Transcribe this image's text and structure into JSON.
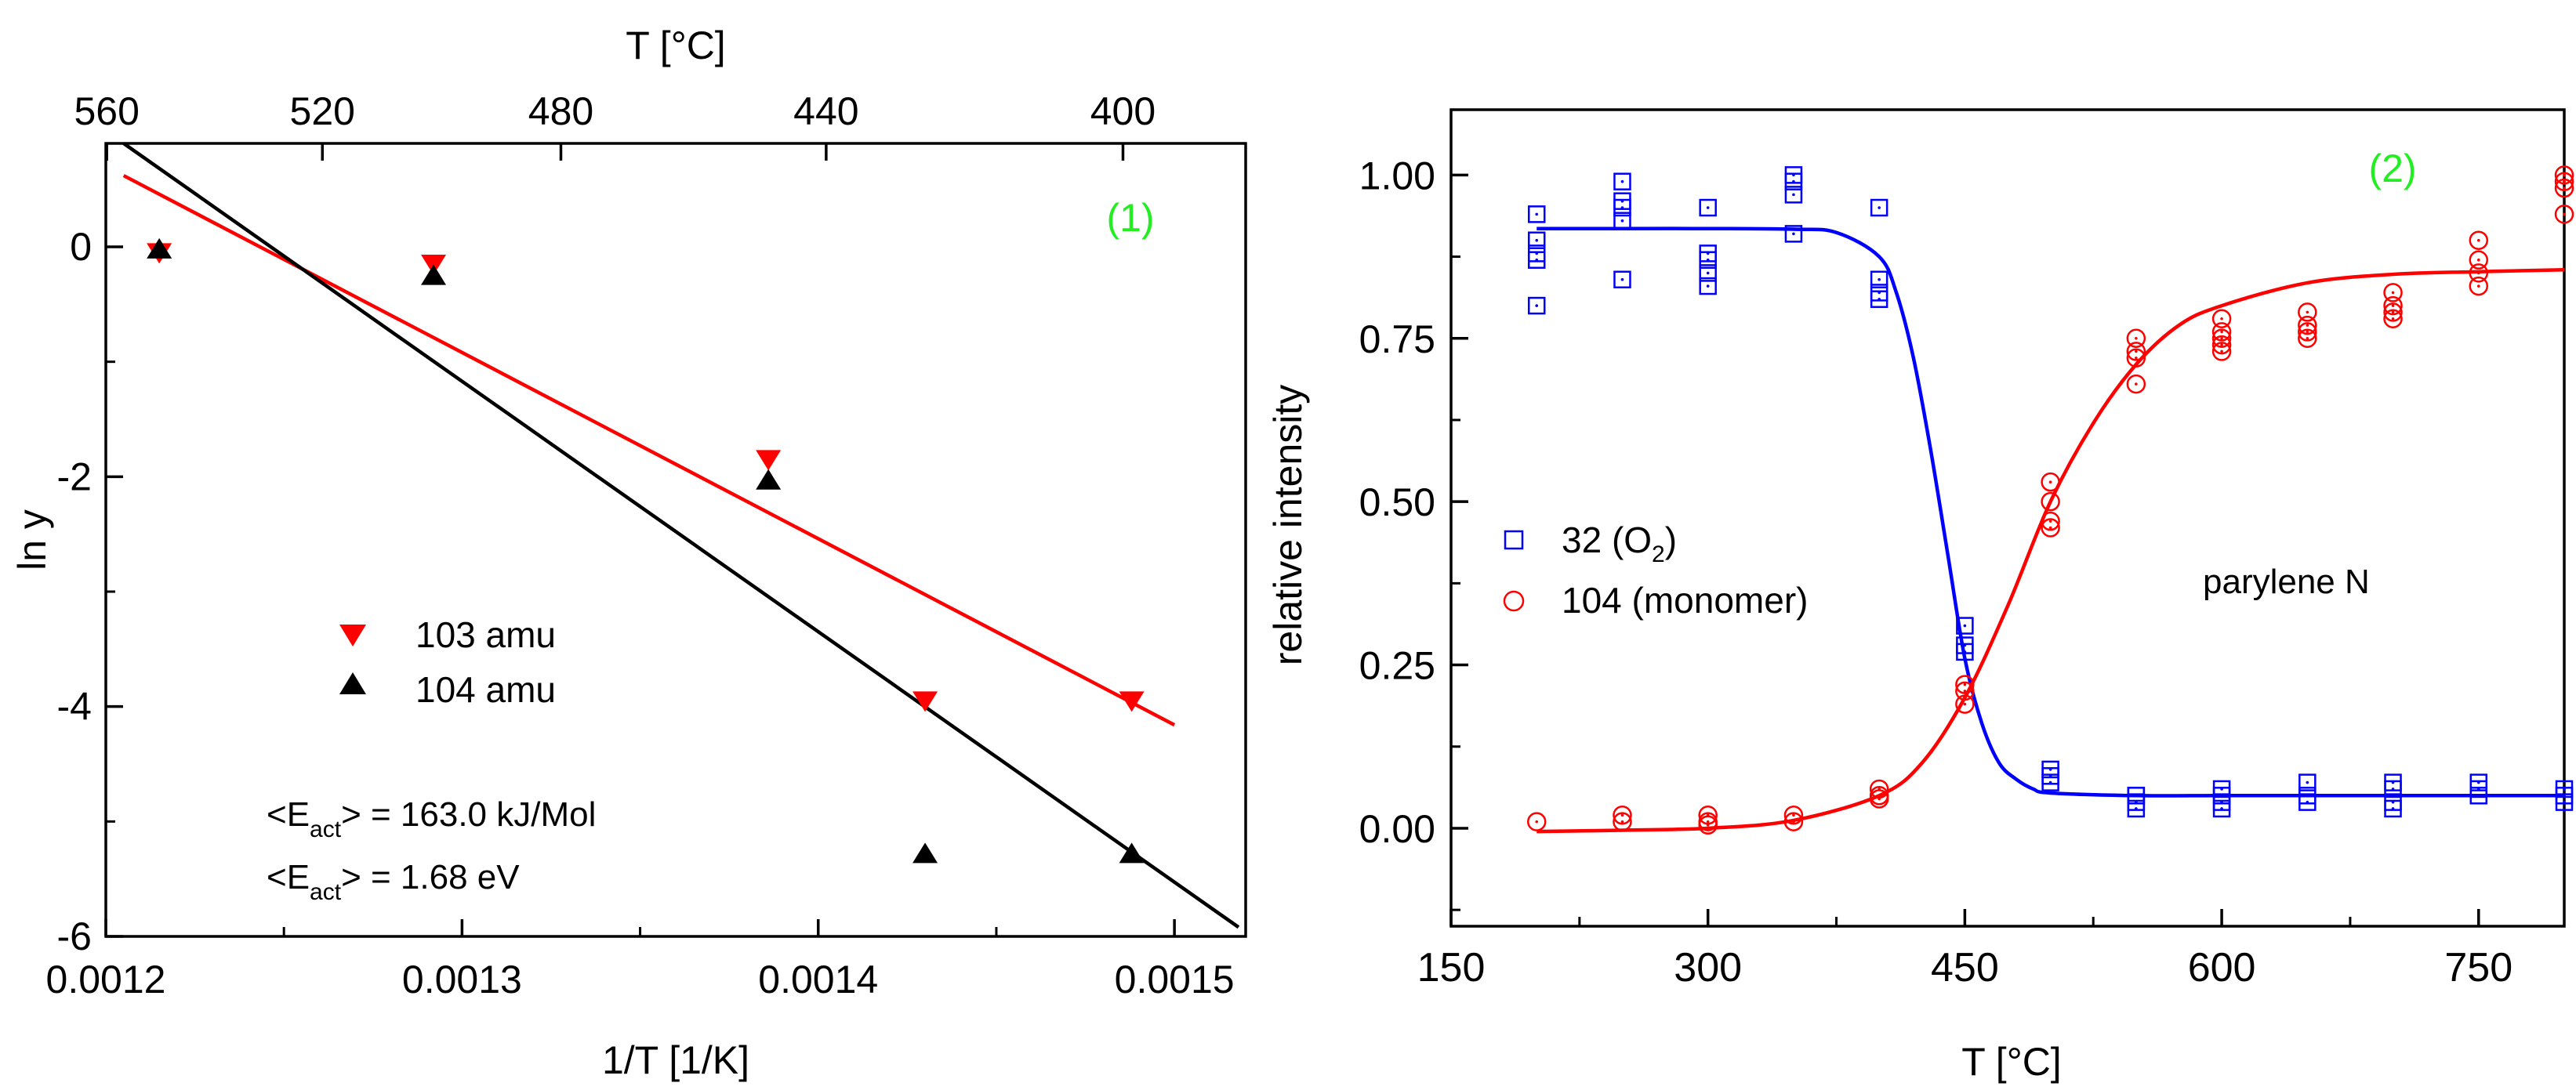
{
  "chart_data": [
    {
      "type": "scatter",
      "panel_label": "(1)",
      "xlabel": "1/T [1/K]",
      "ylabel": "ln y",
      "top_axis_label": "T [°C]",
      "xlim": [
        0.0012,
        0.00152
      ],
      "ylim": [
        -6,
        0.9
      ],
      "xticks": [
        {
          "v": 0.0012,
          "label": "0.0012"
        },
        {
          "v": 0.0013,
          "label": "0.0013"
        },
        {
          "v": 0.0014,
          "label": "0.0014"
        },
        {
          "v": 0.0015,
          "label": "0.0015"
        }
      ],
      "yticks": [
        {
          "v": 0,
          "label": "0"
        },
        {
          "v": -2,
          "label": "-2"
        },
        {
          "v": -4,
          "label": "-4"
        },
        {
          "v": -6,
          "label": "-6"
        }
      ],
      "top_ticks": [
        {
          "t": 560,
          "label": "560"
        },
        {
          "t": 520,
          "label": "520"
        },
        {
          "t": 480,
          "label": "480"
        },
        {
          "t": 440,
          "label": "440"
        },
        {
          "t": 400,
          "label": "400"
        }
      ],
      "series": [
        {
          "name": "103 amu",
          "color": "#ff0000",
          "marker": "triangle-down",
          "x": [
            0.001215,
            0.001292,
            0.001386,
            0.00143,
            0.001488
          ],
          "y": [
            -0.05,
            -0.15,
            -1.85,
            -3.95,
            -3.95
          ]
        },
        {
          "name": "104 amu",
          "color": "#000000",
          "marker": "triangle-up",
          "x": [
            0.001215,
            0.001292,
            0.001386,
            0.00143,
            0.001488
          ],
          "y": [
            -0.02,
            -0.25,
            -2.03,
            -5.28,
            -5.28
          ]
        }
      ],
      "fits": [
        {
          "name": "103 amu fit",
          "color": "#ff0000",
          "x": [
            0.001205,
            0.0015
          ],
          "y": [
            0.62,
            -4.16
          ]
        },
        {
          "name": "104 amu fit",
          "color": "#000000",
          "x": [
            0.001205,
            0.001518
          ],
          "y": [
            0.9,
            -5.92
          ]
        }
      ],
      "legend_placement": "lower-left",
      "annotations": [
        {
          "pre": "<E",
          "sub": "act",
          "post": "> = 163.0 kJ/Mol"
        },
        {
          "pre": "<E",
          "sub": "act",
          "post": "> = 1.68 eV"
        }
      ]
    },
    {
      "type": "scatter",
      "panel_label": "(2)",
      "xlabel": "T [°C]",
      "ylabel": "relative intensity",
      "xlim": [
        150,
        800
      ],
      "ylim": [
        -0.15,
        1.1
      ],
      "xticks": [
        {
          "v": 150,
          "label": "150"
        },
        {
          "v": 300,
          "label": "300"
        },
        {
          "v": 450,
          "label": "450"
        },
        {
          "v": 600,
          "label": "600"
        },
        {
          "v": 750,
          "label": "750"
        }
      ],
      "yticks": [
        {
          "v": 0,
          "label": "0.00"
        },
        {
          "v": 0.25,
          "label": "0.25"
        },
        {
          "v": 0.5,
          "label": "0.50"
        },
        {
          "v": 0.75,
          "label": "0.75"
        },
        {
          "v": 1.0,
          "label": "1.00"
        }
      ],
      "annotation": "parylene N",
      "legend_placement": "middle-left",
      "series": [
        {
          "name": "32 (O2)",
          "legend_pre": "32 (O",
          "legend_sub": "2",
          "legend_post": ")",
          "color": "#0000ff",
          "marker": "square",
          "x": [
            200,
            200,
            200,
            200,
            200,
            250,
            250,
            250,
            250,
            250,
            300,
            300,
            300,
            300,
            300,
            350,
            350,
            350,
            350,
            400,
            400,
            400,
            400,
            450,
            450,
            450,
            500,
            500,
            500,
            550,
            550,
            550,
            550,
            600,
            600,
            600,
            600,
            650,
            650,
            650,
            700,
            700,
            700,
            700,
            750,
            750,
            750,
            800,
            800,
            800
          ],
          "y": [
            0.94,
            0.9,
            0.87,
            0.8,
            0.88,
            0.99,
            0.95,
            0.93,
            0.84,
            0.96,
            0.95,
            0.87,
            0.85,
            0.83,
            0.88,
            1.0,
            0.97,
            0.91,
            0.99,
            0.95,
            0.84,
            0.82,
            0.81,
            0.31,
            0.28,
            0.27,
            0.09,
            0.07,
            0.08,
            0.05,
            0.04,
            0.03,
            0.05,
            0.06,
            0.04,
            0.03,
            0.05,
            0.07,
            0.04,
            0.05,
            0.07,
            0.04,
            0.06,
            0.03,
            0.07,
            0.06,
            0.05,
            0.06,
            0.04,
            0.05
          ]
        },
        {
          "name": "104 (monomer)",
          "legend_pre": "104 (monomer)",
          "legend_sub": "",
          "legend_post": "",
          "color": "#ff0000",
          "marker": "circle",
          "x": [
            200,
            250,
            250,
            300,
            300,
            300,
            350,
            350,
            400,
            400,
            400,
            450,
            450,
            450,
            500,
            500,
            500,
            500,
            550,
            550,
            550,
            550,
            600,
            600,
            600,
            600,
            600,
            650,
            650,
            650,
            650,
            700,
            700,
            700,
            700,
            750,
            750,
            750,
            750,
            800,
            800,
            800,
            800
          ],
          "y": [
            0.01,
            0.02,
            0.01,
            0.02,
            0.01,
            0.005,
            0.02,
            0.01,
            0.06,
            0.05,
            0.045,
            0.22,
            0.21,
            0.19,
            0.53,
            0.5,
            0.47,
            0.46,
            0.75,
            0.73,
            0.72,
            0.68,
            0.78,
            0.76,
            0.75,
            0.74,
            0.73,
            0.79,
            0.77,
            0.76,
            0.75,
            0.82,
            0.8,
            0.79,
            0.78,
            0.9,
            0.87,
            0.85,
            0.83,
            1.0,
            0.99,
            0.98,
            0.94
          ]
        }
      ],
      "fits": [
        {
          "name": "32 (O2) fit",
          "color": "#0000ff",
          "x": [
            200,
            250,
            300,
            350,
            375,
            400,
            410,
            420,
            430,
            440,
            450,
            460,
            470,
            480,
            490,
            500,
            550,
            600,
            650,
            700,
            750,
            800
          ],
          "y": [
            0.918,
            0.918,
            0.918,
            0.917,
            0.912,
            0.875,
            0.82,
            0.72,
            0.58,
            0.42,
            0.26,
            0.16,
            0.1,
            0.075,
            0.06,
            0.054,
            0.05,
            0.05,
            0.05,
            0.05,
            0.05,
            0.05
          ]
        },
        {
          "name": "104 (monomer) fit",
          "color": "#ff0000",
          "x": [
            200,
            250,
            300,
            350,
            400,
            425,
            450,
            475,
            500,
            525,
            550,
            575,
            600,
            650,
            700,
            750,
            800
          ],
          "y": [
            -0.005,
            -0.003,
            0.0,
            0.012,
            0.05,
            0.1,
            0.2,
            0.34,
            0.5,
            0.62,
            0.71,
            0.77,
            0.8,
            0.835,
            0.848,
            0.852,
            0.855
          ]
        }
      ]
    }
  ]
}
